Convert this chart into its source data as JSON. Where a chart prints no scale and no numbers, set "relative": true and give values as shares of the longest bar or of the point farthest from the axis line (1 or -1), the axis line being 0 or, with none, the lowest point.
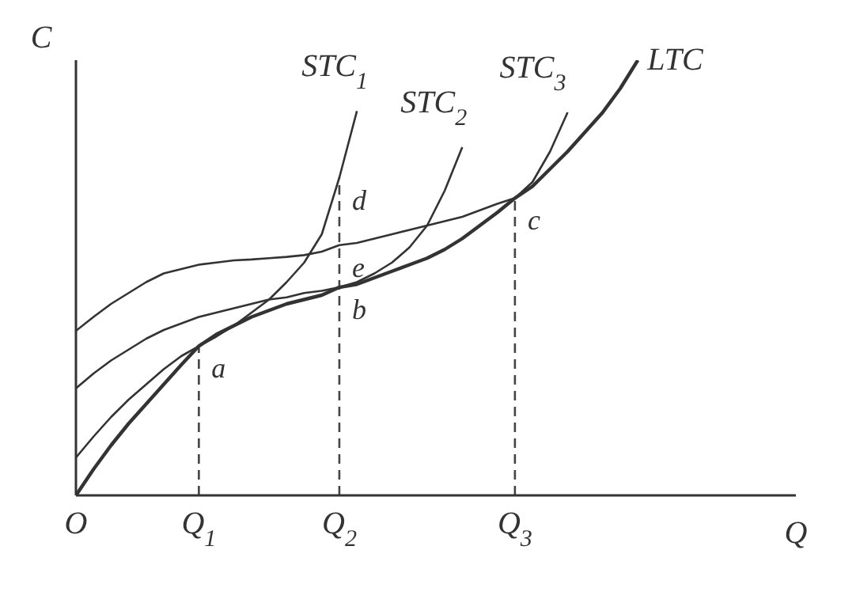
{
  "chart_data": {
    "type": "line",
    "relative": true,
    "xlabel": "Q",
    "ylabel": "C",
    "categories": [
      "O",
      null,
      null,
      null,
      null,
      null,
      null,
      "Q$_{1}$",
      null,
      null,
      null,
      null,
      null,
      null,
      null,
      "Q$_{2}$",
      null,
      null,
      null,
      null,
      null,
      null,
      null,
      null,
      null,
      "Q$_{3}$",
      null,
      null,
      null,
      null,
      null,
      null,
      null,
      null,
      null,
      null,
      null,
      null,
      null,
      null,
      null,
      null
    ],
    "tick_labels": "x",
    "marker": "none",
    "line_style": "solid",
    "series": [
      {
        "name": "STC$_{1}$",
        "color": "#333333",
        "values": [
          0.087,
          0.135,
          0.18,
          0.22,
          0.255,
          0.29,
          0.32,
          0.343,
          0.365,
          0.39,
          0.42,
          0.45,
          0.49,
          0.535,
          0.6,
          0.73,
          0.883,
          null,
          null,
          null,
          null,
          null,
          null,
          null,
          null,
          null,
          null,
          null,
          null,
          null,
          null,
          null,
          null,
          null,
          null,
          null,
          null,
          null,
          null,
          null,
          null,
          null
        ]
      },
      {
        "name": "STC$_{2}$",
        "color": "#333333",
        "values": [
          0.246,
          0.28,
          0.31,
          0.335,
          0.36,
          0.38,
          0.395,
          0.41,
          0.42,
          0.43,
          0.44,
          0.45,
          0.455,
          0.465,
          0.47,
          0.478,
          0.49,
          0.51,
          0.535,
          0.57,
          0.62,
          0.7,
          0.8,
          null,
          null,
          null,
          null,
          null,
          null,
          null,
          null,
          null,
          null,
          null,
          null,
          null,
          null,
          null,
          null,
          null,
          null,
          null
        ]
      },
      {
        "name": "STC$_{3}$",
        "color": "#333333",
        "values": [
          0.378,
          0.41,
          0.44,
          0.465,
          0.49,
          0.51,
          0.52,
          0.53,
          0.535,
          0.54,
          0.542,
          0.545,
          0.548,
          0.552,
          0.56,
          0.575,
          0.58,
          0.59,
          0.6,
          0.61,
          0.62,
          0.63,
          0.64,
          0.655,
          0.67,
          0.683,
          0.72,
          0.79,
          0.88,
          null,
          null,
          null,
          null,
          null,
          null,
          null,
          null,
          null,
          null,
          null,
          null,
          null
        ]
      },
      {
        "name": "LTC",
        "color": "#333333",
        "values": [
          0,
          0.06,
          0.115,
          0.165,
          0.21,
          0.255,
          0.3,
          0.343,
          0.37,
          0.39,
          0.41,
          0.425,
          0.44,
          0.45,
          0.46,
          0.478,
          0.485,
          0.5,
          0.515,
          0.53,
          0.545,
          0.565,
          0.59,
          0.62,
          0.65,
          0.683,
          0.71,
          0.75,
          0.79,
          0.835,
          0.88,
          0.935,
          1,
          null,
          null,
          null,
          null,
          null,
          null,
          null,
          null,
          null
        ]
      }
    ],
    "annotations": [
      {
        "text": "a",
        "x": "Q$_{1}$",
        "y": 0.343
      },
      {
        "text": "b",
        "x": "Q$_{2}$",
        "y": 0.478
      },
      {
        "text": "c",
        "x": "Q$_{3}$",
        "y": 0.683
      },
      {
        "text": "d",
        "x": "Q$_{2}$",
        "y": 0.73
      },
      {
        "text": "e",
        "x": "Q$_{2}$",
        "y": 0.575
      }
    ],
    "ref_lines": [
      {
        "axis": "x",
        "value": "Q$_{1}$",
        "line_style": "dashed",
        "color": "#444444"
      },
      {
        "axis": "x",
        "value": "Q$_{2}$",
        "line_style": "dashed",
        "color": "#444444"
      },
      {
        "axis": "x",
        "value": "Q$_{3}$",
        "line_style": "dashed",
        "color": "#444444"
      }
    ]
  }
}
